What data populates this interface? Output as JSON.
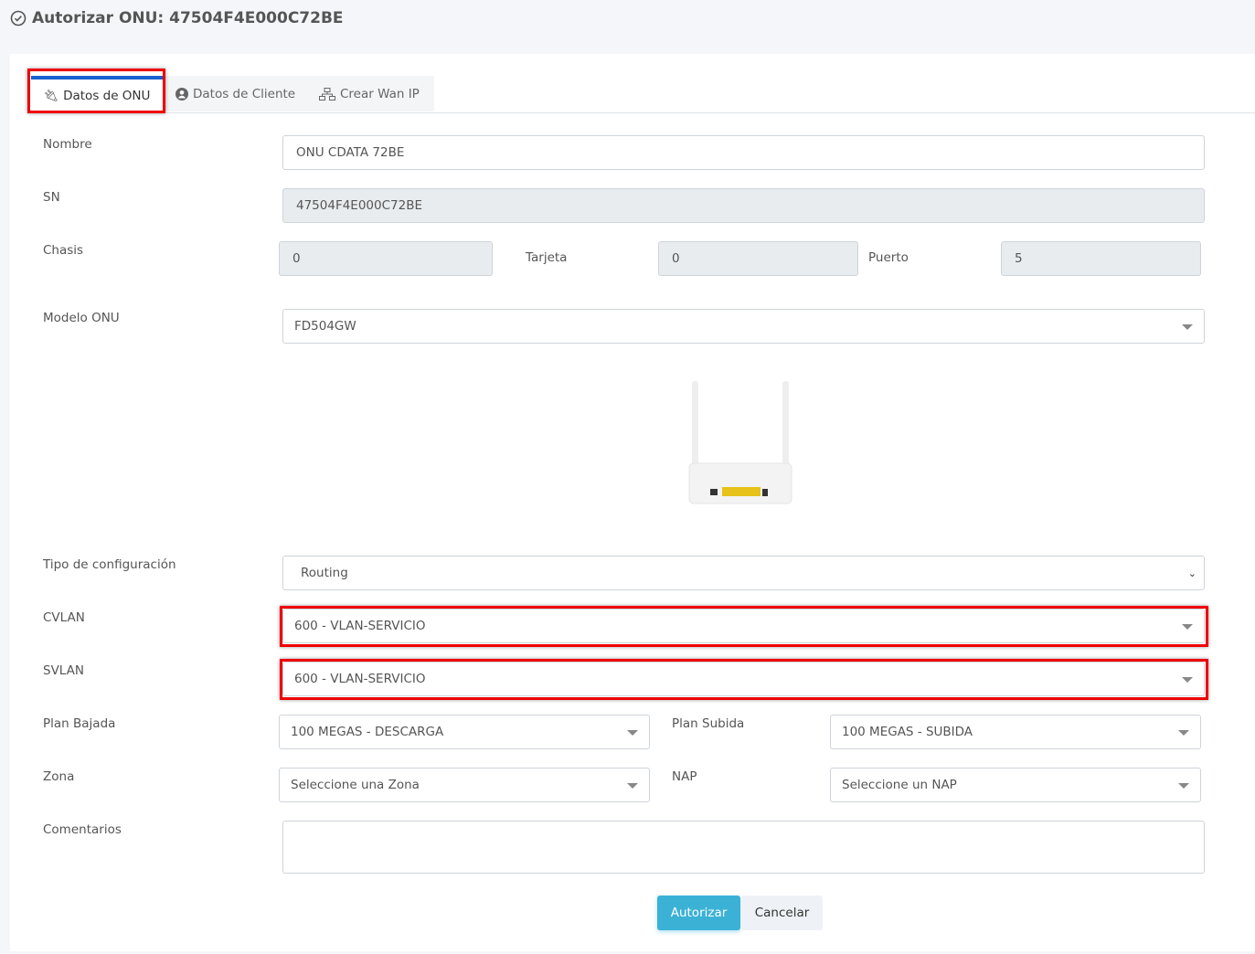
{
  "header": {
    "title": "Autorizar ONU: 47504F4E000C72BE",
    "icon": "check-circle-icon"
  },
  "tabs": [
    {
      "label": "Datos de ONU",
      "icon": "plug-icon",
      "active": true
    },
    {
      "label": "Datos de Cliente",
      "icon": "user-circle-icon"
    },
    {
      "label": "Crear Wan IP",
      "icon": "network-icon"
    }
  ],
  "form": {
    "nombre": {
      "label": "Nombre",
      "value": "ONU CDATA 72BE"
    },
    "sn": {
      "label": "SN",
      "value": "47504F4E000C72BE"
    },
    "chasis": {
      "label": "Chasis",
      "value": "0"
    },
    "tarjeta": {
      "label": "Tarjeta",
      "value": "0"
    },
    "puerto": {
      "label": "Puerto",
      "value": "5"
    },
    "modelo": {
      "label": "Modelo ONU",
      "value": "FD504GW"
    },
    "tipo": {
      "label": "Tipo de configuración",
      "value": "Routing"
    },
    "cvlan": {
      "label": "CVLAN",
      "value": "600 - VLAN-SERVICIO"
    },
    "svlan": {
      "label": "SVLAN",
      "value": "600 - VLAN-SERVICIO"
    },
    "plan_bajada": {
      "label": "Plan Bajada",
      "value": "100 MEGAS - DESCARGA"
    },
    "plan_subida": {
      "label": "Plan Subida",
      "value": "100 MEGAS - SUBIDA"
    },
    "zona": {
      "label": "Zona",
      "value": "Seleccione una Zona"
    },
    "nap": {
      "label": "NAP",
      "value": "Seleccione un NAP"
    },
    "comentarios": {
      "label": "Comentarios",
      "value": ""
    }
  },
  "buttons": {
    "authorize": "Autorizar",
    "cancel": "Cancelar"
  },
  "colors": {
    "primary": "#3bb1d6",
    "highlight": "#e00000",
    "tab_active": "#1a5fd0"
  }
}
